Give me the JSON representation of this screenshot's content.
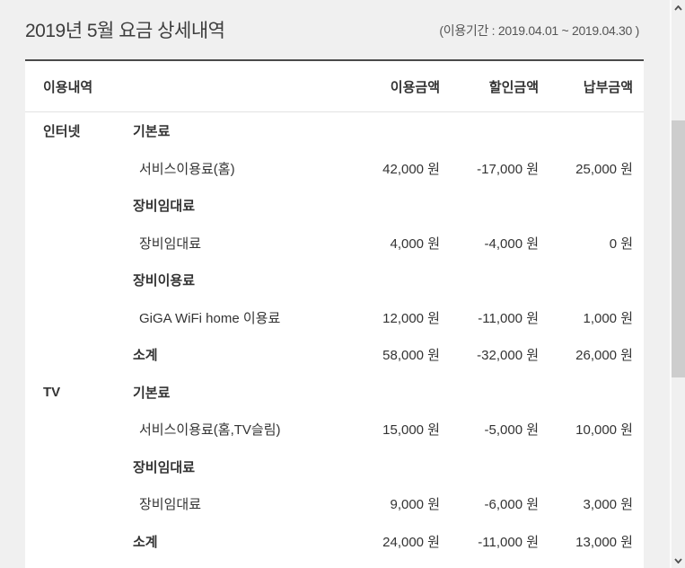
{
  "page": {
    "title": "2019년 5월 요금 상세내역",
    "period": "(이용기간 : 2019.04.01 ~ 2019.04.30 )"
  },
  "table": {
    "headers": [
      "이용내역",
      "이용금액",
      "할인금액",
      "납부금액"
    ],
    "sections": [
      {
        "name": "인터넷",
        "rows": [
          {
            "type": "group",
            "label": "기본료"
          },
          {
            "type": "item",
            "label": "서비스이용료(홈)",
            "usage": "42,000 원",
            "discount": "-17,000 원",
            "payment": "25,000 원"
          },
          {
            "type": "group",
            "label": "장비임대료"
          },
          {
            "type": "item",
            "label": "장비임대료",
            "usage": "4,000 원",
            "discount": "-4,000 원",
            "payment": "0 원"
          },
          {
            "type": "group",
            "label": "장비이용료"
          },
          {
            "type": "item",
            "label": "GiGA WiFi home 이용료",
            "usage": "12,000 원",
            "discount": "-11,000 원",
            "payment": "1,000 원"
          },
          {
            "type": "subtotal",
            "label": "소계",
            "usage": "58,000 원",
            "discount": "-32,000 원",
            "payment": "26,000 원"
          }
        ]
      },
      {
        "name": "TV",
        "rows": [
          {
            "type": "group",
            "label": "기본료"
          },
          {
            "type": "item",
            "label": "서비스이용료(홈,TV슬림)",
            "usage": "15,000 원",
            "discount": "-5,000 원",
            "payment": "10,000 원"
          },
          {
            "type": "group",
            "label": "장비임대료"
          },
          {
            "type": "item",
            "label": "장비임대료",
            "usage": "9,000 원",
            "discount": "-6,000 원",
            "payment": "3,000 원"
          },
          {
            "type": "subtotal",
            "label": "소계",
            "usage": "24,000 원",
            "discount": "-11,000 원",
            "payment": "13,000 원"
          }
        ]
      }
    ]
  },
  "colors": {
    "page_bg": "#f0f0f0",
    "card_bg": "#ffffff",
    "card_top_border": "#4a4a4a",
    "header_divider": "#e2e2e2",
    "text": "#333333",
    "title_text": "#3d3d3d",
    "period_text": "#555555",
    "scrollbar_thumb": "#cdcdcd",
    "scrollbar_arrow": "#505050"
  }
}
